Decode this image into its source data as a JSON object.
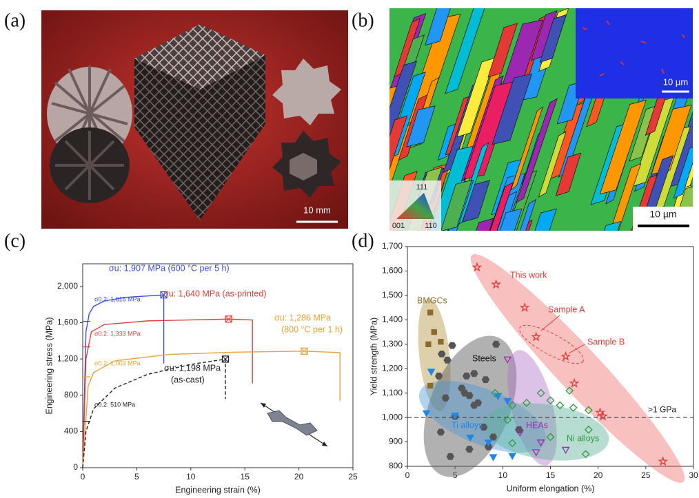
{
  "panels": {
    "a": {
      "label": "(a)",
      "scale_bar": "10 mm"
    },
    "b": {
      "label": "(b)",
      "inset_scale_bar": "10 µm",
      "scale_bar": "10 µm",
      "ipf_corners": [
        "111",
        "001",
        "110"
      ]
    },
    "c": {
      "label": "(c)"
    },
    "d": {
      "label": "(d)"
    }
  },
  "chart_data": [
    {
      "type": "line",
      "x_label": "Engineering strain (%)",
      "y_label": "Engineering stress (MPa)",
      "xlim": [
        0,
        25
      ],
      "xticks": [
        0,
        5,
        10,
        15,
        20,
        25
      ],
      "ylim": [
        0,
        2250
      ],
      "yticks": [
        0,
        400,
        800,
        {
          "value": 1200,
          "label": "1,200"
        },
        {
          "value": 1600,
          "label": "1,600"
        },
        {
          "value": 2000,
          "label": "2,000"
        }
      ],
      "series": [
        {
          "color": "#3b4fd8",
          "x": [
            0,
            0.3,
            0.6,
            1,
            2,
            4,
            7.5,
            7.5
          ],
          "values": [
            0,
            1500,
            1700,
            1780,
            1840,
            1880,
            1907,
            1150
          ],
          "uts_index": 6,
          "uts_label": [
            "σu: 1,907 MPa (600 °C per 5 h)"
          ],
          "yield": 1615,
          "yield_label": "σ0.2: 1,615 MPa"
        },
        {
          "color": "#e0403a",
          "x": [
            0,
            0.3,
            0.8,
            2,
            6,
            13.5,
            15.7,
            15.7
          ],
          "values": [
            0,
            1200,
            1500,
            1580,
            1620,
            1640,
            1630,
            930
          ],
          "uts_index": 5,
          "uts_label": [
            "σu: 1,640 MPa (as-printed)"
          ],
          "yield": 1333,
          "yield_label": "σ0.2: 1,333 MPa"
        },
        {
          "color": "#e8a33a",
          "x": [
            0,
            0.5,
            1,
            3,
            8,
            14,
            20.5,
            23.8,
            23.8
          ],
          "values": [
            0,
            900,
            1050,
            1180,
            1250,
            1275,
            1286,
            1270,
            740
          ],
          "uts_index": 6,
          "uts_label": [
            "σu: 1,286 MPa",
            "(800 °C per 1 h)"
          ],
          "yield": 1003,
          "yield_label": "σ0.2: 1,003 MPa"
        },
        {
          "color": "#222222",
          "dashed": true,
          "x": [
            0,
            0.3,
            1,
            3,
            6,
            10,
            13.2,
            13.2
          ],
          "values": [
            0,
            400,
            650,
            880,
            1030,
            1140,
            1198,
            760
          ],
          "uts_index": 6,
          "uts_label": [
            "σu: 1,198 MPa",
            "(as-cast)"
          ],
          "yield": 510,
          "yield_label": "σ0.2: 510 MPa"
        }
      ]
    },
    {
      "type": "scatter",
      "x_label": "Uniform elongation (%)",
      "y_label": "Yield strength (MPa)",
      "xlim": [
        0,
        30
      ],
      "xticks": [
        0,
        5,
        10,
        15,
        20,
        25,
        30
      ],
      "ylim": [
        800,
        1700
      ],
      "yticks": [
        800,
        900,
        {
          "value": 1000,
          "label": "1,000"
        },
        {
          "value": 1100,
          "label": "1,100"
        },
        {
          "value": 1200,
          "label": "1,200"
        },
        {
          "value": 1300,
          "label": "1,300"
        },
        {
          "value": 1400,
          "label": "1,400"
        },
        {
          "value": 1500,
          "label": "1,500"
        },
        {
          "value": 1600,
          "label": "1,600"
        },
        {
          "value": 1700,
          "label": "1,700"
        }
      ],
      "threshold": {
        "value": 1000,
        "label": ">1 GPa"
      },
      "annotations": [
        "Sample A",
        "Sample B"
      ],
      "series": [
        {
          "name": "This work",
          "color": "#e53935",
          "marker": "star",
          "x": [
            7.3,
            9.3,
            12.3,
            13.5,
            16.6,
            17.5,
            20.2,
            20.5,
            26.8
          ],
          "values": [
            1615,
            1545,
            1450,
            1330,
            1250,
            1140,
            1020,
            1005,
            820
          ]
        },
        {
          "name": "BMGCs",
          "color": "#8b6a2b",
          "marker": "square",
          "x": [
            2.4,
            2.8,
            2.2,
            3.5,
            2.4
          ],
          "values": [
            1430,
            1350,
            1300,
            1310,
            1130
          ]
        },
        {
          "name": "Steels",
          "color": "#555555",
          "marker": "hexagon",
          "x": [
            3.6,
            4.7,
            4.2,
            3.3,
            4,
            5.7,
            6,
            6.5,
            7,
            7.4,
            8.2,
            9.3,
            5,
            3.5,
            4.5,
            6.5,
            8.5,
            9,
            11.7,
            8,
            7,
            6.2
          ],
          "values": [
            1260,
            1295,
            1235,
            1170,
            1080,
            1120,
            1100,
            1090,
            1180,
            1060,
            1155,
            1300,
            1005,
            940,
            840,
            870,
            880,
            920,
            950,
            960,
            1050,
            1170
          ]
        },
        {
          "name": "Ti alloys",
          "color": "#1e88e5",
          "marker": "triangle-down",
          "x": [
            2,
            2.5,
            5,
            6.6,
            8.5,
            9.5,
            10.5,
            11,
            9
          ],
          "values": [
            1020,
            1190,
            1010,
            920,
            900,
            1090,
            1070,
            845,
            840
          ]
        },
        {
          "name": "HEAs",
          "color": "#9c27b0",
          "marker": "triangle-down",
          "x": [
            10.5,
            11.8,
            13.5,
            14,
            16.6
          ],
          "values": [
            1240,
            940,
            860,
            900,
            870
          ]
        },
        {
          "name": "Ni alloys",
          "color": "#2e9a3a",
          "marker": "diamond",
          "x": [
            9.2,
            11,
            12.5,
            14,
            15,
            16,
            17,
            17.4,
            19,
            19,
            15,
            11,
            18.7,
            10.5
          ],
          "values": [
            1100,
            1050,
            1060,
            1100,
            1070,
            1050,
            1110,
            1040,
            1030,
            950,
            920,
            895,
            850,
            990
          ]
        }
      ]
    }
  ]
}
